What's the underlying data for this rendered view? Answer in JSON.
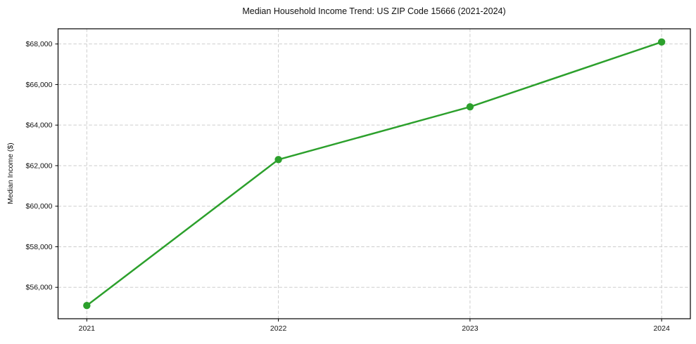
{
  "chart_data": {
    "type": "line",
    "title": "Median Household Income Trend: US ZIP Code 15666 (2021-2024)",
    "xlabel": "",
    "ylabel": "Median Income ($)",
    "x": [
      2021,
      2022,
      2023,
      2024
    ],
    "x_tick_labels": [
      "2021",
      "2022",
      "2023",
      "2024"
    ],
    "series": [
      {
        "name": "Median household income",
        "values": [
          55100,
          62300,
          64900,
          68100
        ]
      }
    ],
    "y_ticks": [
      {
        "value": 56000,
        "label": "$56,000"
      },
      {
        "value": 58000,
        "label": "$58,000"
      },
      {
        "value": 60000,
        "label": "$60,000"
      },
      {
        "value": 62000,
        "label": "$62,000"
      },
      {
        "value": 64000,
        "label": "$64,000"
      },
      {
        "value": 66000,
        "label": "$66,000"
      },
      {
        "value": 68000,
        "label": "$68,000"
      }
    ],
    "xlim": [
      2020.85,
      2024.15
    ],
    "ylim": [
      54450,
      68750
    ],
    "grid": "both-dashed",
    "legend": "none",
    "marker": "circle",
    "colors": {
      "line": "#2ca02c",
      "marker": "#2ca02c",
      "grid": "#cdcdcd",
      "spine": "#000000",
      "text": "#111111",
      "background": "#ffffff"
    }
  }
}
